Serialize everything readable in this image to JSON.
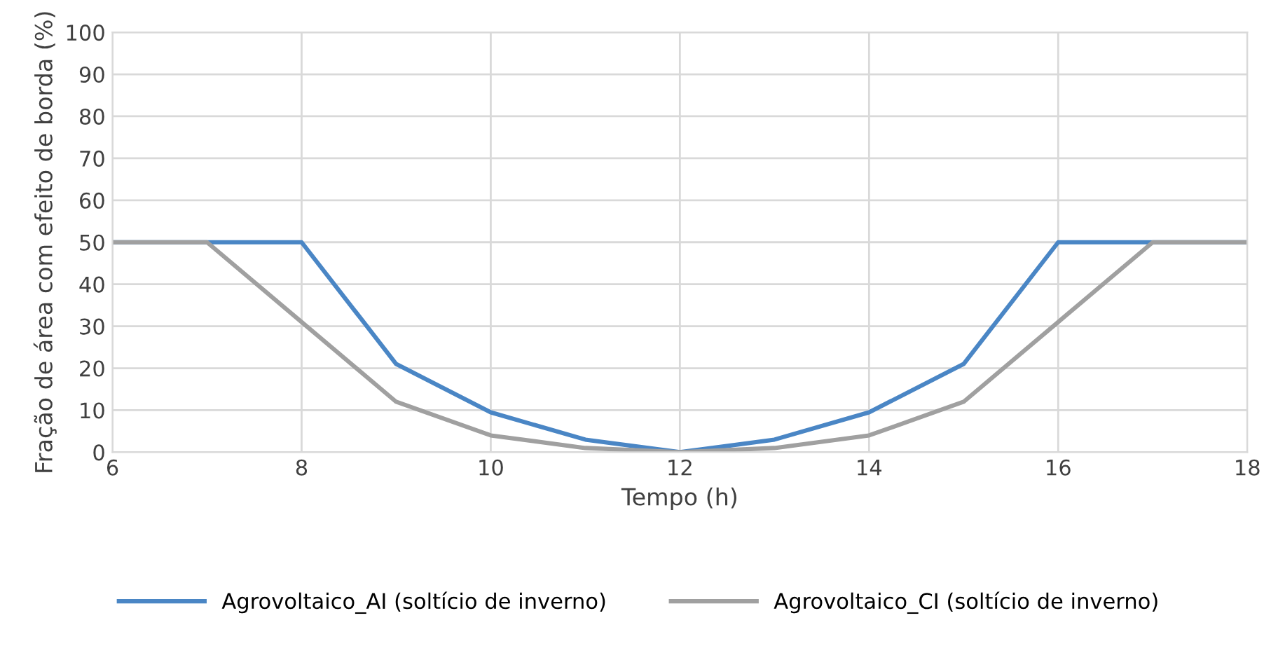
{
  "chart_data": {
    "type": "line",
    "xlabel": "Tempo (h)",
    "ylabel": "Fração de área com efeito de borda (%)",
    "x": [
      6,
      7,
      8,
      9,
      10,
      11,
      12,
      13,
      14,
      15,
      16,
      17,
      18
    ],
    "series": [
      {
        "name": "Agrovoltaico_AI (soltício de inverno)",
        "color": "#4a86c5",
        "values": [
          50,
          50,
          50,
          21,
          9.5,
          3,
          0,
          3,
          9.5,
          21,
          50,
          50,
          50
        ]
      },
      {
        "name": "Agrovoltaico_CI (soltício de inverno)",
        "color": "#a0a0a0",
        "values": [
          50,
          50,
          31,
          12,
          4,
          1,
          0,
          1,
          4,
          12,
          31,
          50,
          50
        ]
      }
    ],
    "xlim": [
      6,
      18
    ],
    "xticks": [
      6,
      8,
      10,
      12,
      14,
      16,
      18
    ],
    "ylim": [
      0,
      100
    ],
    "yticks": [
      0,
      10,
      20,
      30,
      40,
      50,
      60,
      70,
      80,
      90,
      100
    ],
    "grid": true,
    "legend": "bottom",
    "marker": "none",
    "line_style": "solid"
  }
}
